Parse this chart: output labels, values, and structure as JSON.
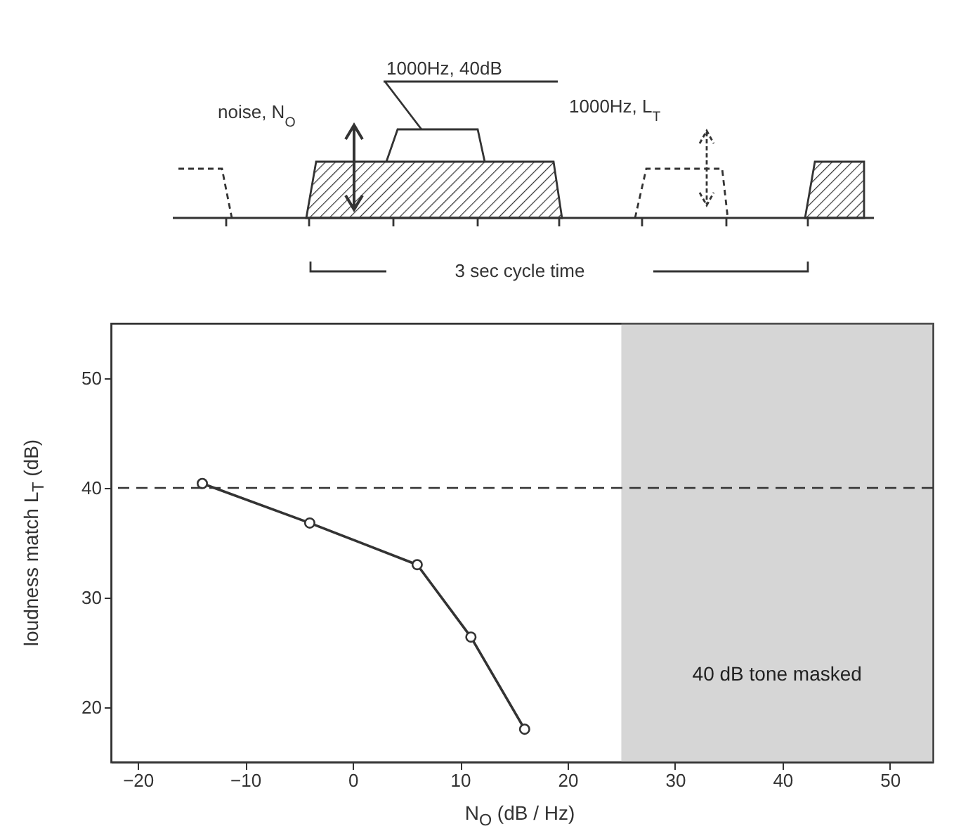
{
  "chart_data": {
    "type": "line",
    "xlabel": "N$_{O}$ (dB / Hz)",
    "ylabel": "loudness match  L$_{T}$ (dB)",
    "x": [
      -14,
      -4,
      6,
      11,
      16
    ],
    "series": [
      {
        "color": "#333333",
        "values": [
          40.4,
          36.8,
          33,
          26.4,
          18
        ]
      }
    ],
    "xlim": [
      -22.5,
      54
    ],
    "ylim": [
      15,
      55
    ],
    "xticks": [
      -20,
      -10,
      0,
      10,
      20,
      30,
      40,
      50
    ],
    "yticks": [
      20,
      30,
      40,
      50
    ],
    "marker": "circle",
    "line_style": "solid",
    "grid": false,
    "ref_lines": [
      {
        "axis": "y",
        "value": 40,
        "line_style": "dashed",
        "color": "#333333"
      }
    ],
    "bands": [
      {
        "axis": "x",
        "from": 25,
        "to": 54,
        "label": "40 dB tone masked",
        "color": "#999999"
      }
    ],
    "annotations": [
      "noise, N$_{O}$",
      "1000Hz, 40dB",
      "1000Hz, L$_{T}$",
      "3 sec cycle time"
    ]
  }
}
